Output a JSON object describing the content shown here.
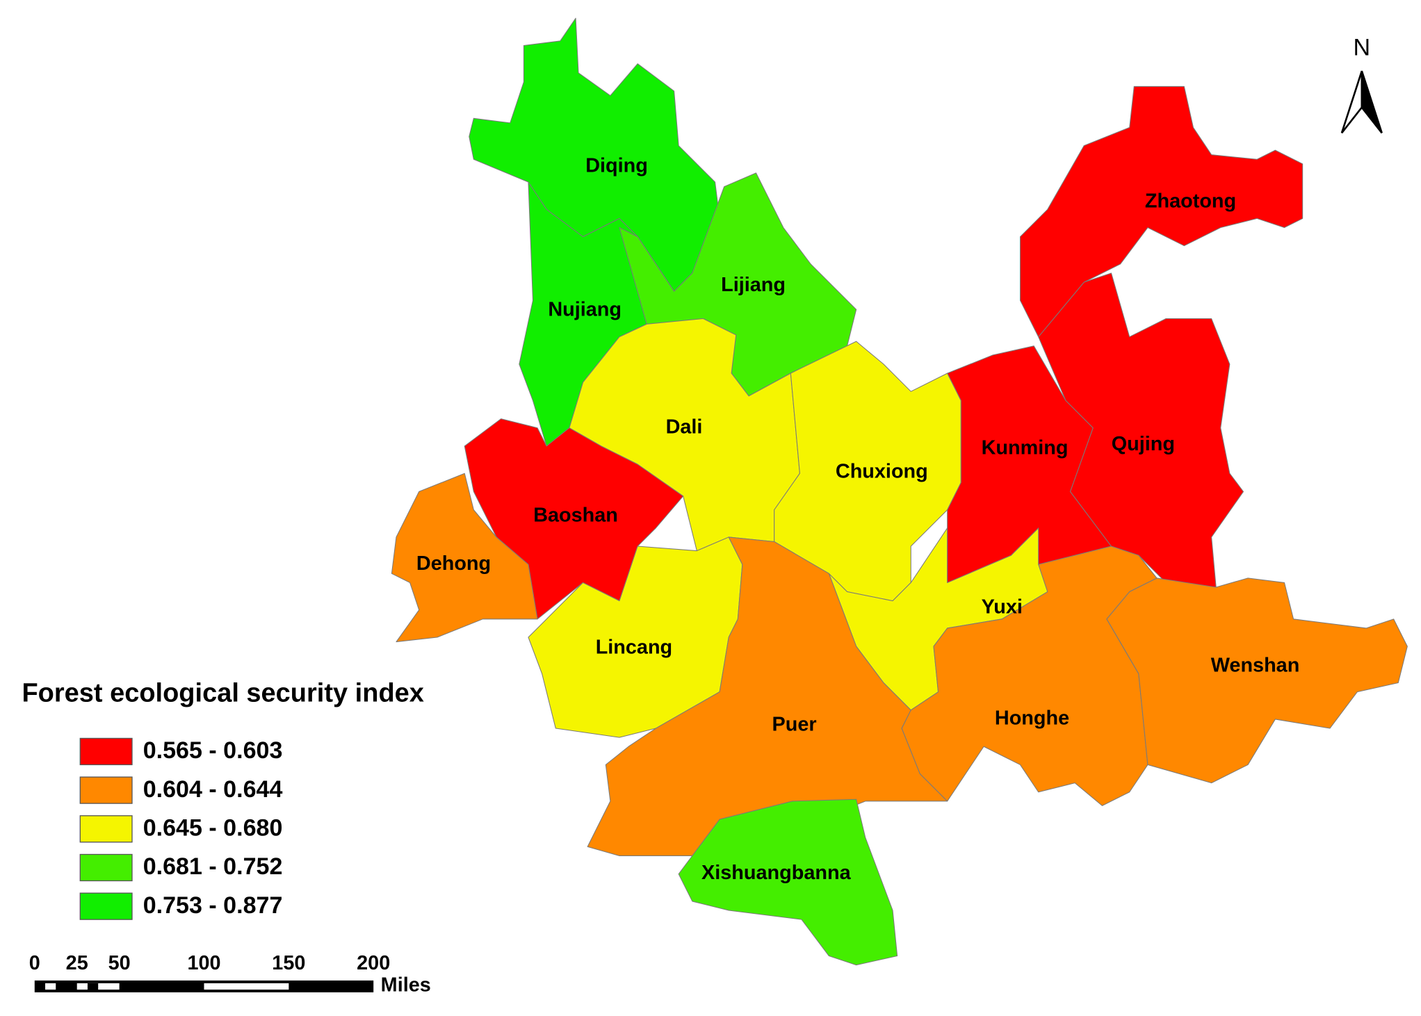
{
  "map": {
    "north": "N",
    "legend": {
      "title": "Forest ecological security index",
      "items": [
        {
          "label": "0.565 - 0.603",
          "color": "#ff0000"
        },
        {
          "label": "0.604 - 0.644",
          "color": "#ff8800"
        },
        {
          "label": "0.645 - 0.680",
          "color": "#f5f500"
        },
        {
          "label": "0.681 - 0.752",
          "color": "#44ee00"
        },
        {
          "label": "0.753 - 0.877",
          "color": "#11ee00"
        }
      ]
    },
    "regions": [
      {
        "name": "Diqing",
        "color": "#11ee00"
      },
      {
        "name": "Nujiang",
        "color": "#11ee00"
      },
      {
        "name": "Lijiang",
        "color": "#44ee00"
      },
      {
        "name": "Dali",
        "color": "#f5f500"
      },
      {
        "name": "Baoshan",
        "color": "#ff0000"
      },
      {
        "name": "Dehong",
        "color": "#ff8800"
      },
      {
        "name": "Lincang",
        "color": "#f5f500"
      },
      {
        "name": "Chuxiong",
        "color": "#f5f500"
      },
      {
        "name": "Yuxi",
        "color": "#f5f500"
      },
      {
        "name": "Puer",
        "color": "#ff8800"
      },
      {
        "name": "Xishuangbanna",
        "color": "#44ee00"
      },
      {
        "name": "Kunming",
        "color": "#ff0000"
      },
      {
        "name": "Qujing",
        "color": "#ff0000"
      },
      {
        "name": "Zhaotong",
        "color": "#ff0000"
      },
      {
        "name": "Honghe",
        "color": "#ff8800"
      },
      {
        "name": "Wenshan",
        "color": "#ff8800"
      }
    ],
    "scale_bar": {
      "ticks": [
        0,
        25,
        50,
        100,
        150,
        200
      ],
      "unit": "Miles"
    }
  }
}
